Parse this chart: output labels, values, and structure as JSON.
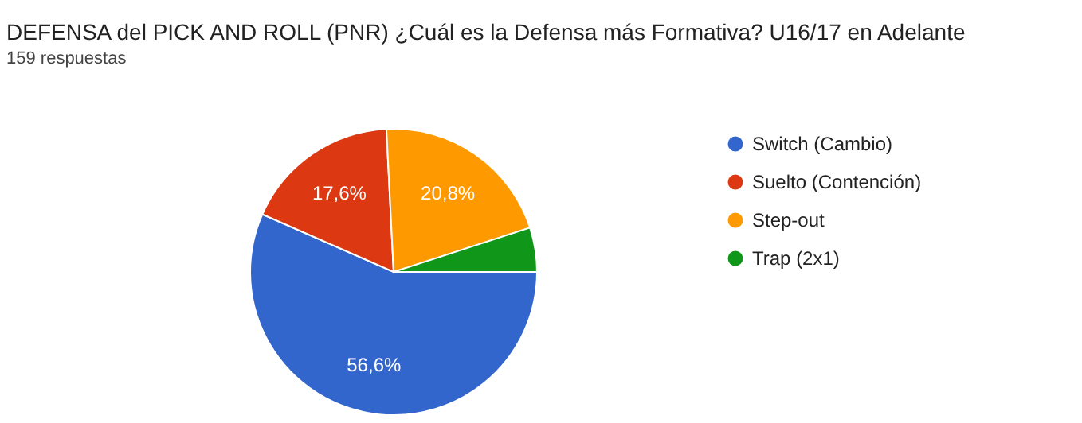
{
  "chart_data": {
    "type": "pie",
    "title": "DEFENSA del PICK AND ROLL (PNR) ¿Cuál es la Defensa más Formativa? U16/17 en Adelante",
    "subtitle": "159 respuestas",
    "categories": [
      "Switch (Cambio)",
      "Suelto (Contención)",
      "Step-out",
      "Trap (2x1)"
    ],
    "values": [
      56.6,
      17.6,
      20.8,
      5.0
    ],
    "colors": [
      "#3366cc",
      "#dc3912",
      "#ff9900",
      "#109618"
    ],
    "value_labels": [
      "56,6%",
      "17,6%",
      "20,8%",
      null
    ],
    "legend": "right"
  }
}
